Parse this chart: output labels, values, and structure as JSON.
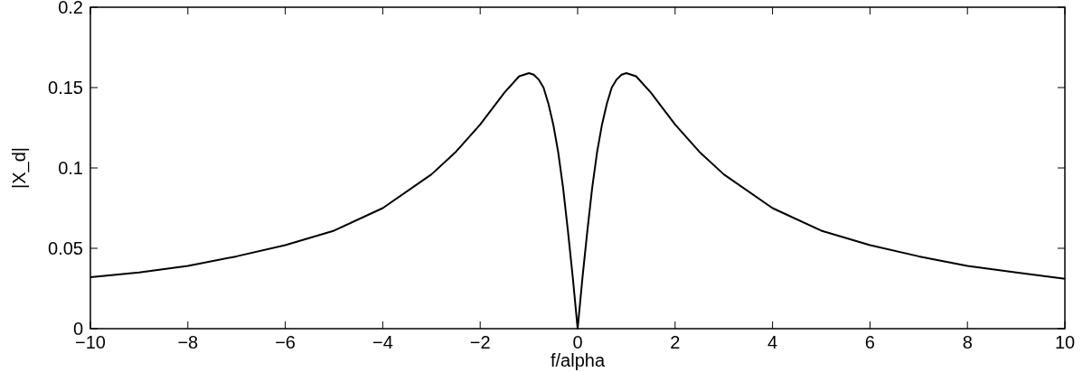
{
  "chart_data": {
    "type": "line",
    "xlabel": "f/alpha",
    "ylabel": "|X_d|",
    "x": [
      -10,
      -9,
      -8,
      -7,
      -6,
      -5,
      -4,
      -3,
      -2.5,
      -2,
      -1.5,
      -1.2,
      -1,
      -0.9,
      -0.8,
      -0.7,
      -0.6,
      -0.5,
      -0.4,
      -0.3,
      -0.2,
      -0.1,
      0,
      0.1,
      0.2,
      0.3,
      0.4,
      0.5,
      0.6,
      0.7,
      0.8,
      0.9,
      1,
      1.2,
      1.5,
      2,
      2.5,
      3,
      4,
      5,
      6,
      7,
      8,
      9,
      10
    ],
    "series": [
      {
        "color": "#000000",
        "values": [
          0.032,
          0.035,
          0.039,
          0.045,
          0.052,
          0.061,
          0.075,
          0.096,
          0.11,
          0.127,
          0.147,
          0.157,
          0.159,
          0.158,
          0.155,
          0.15,
          0.14,
          0.127,
          0.11,
          0.088,
          0.061,
          0.032,
          0,
          0.032,
          0.061,
          0.088,
          0.11,
          0.127,
          0.14,
          0.15,
          0.155,
          0.158,
          0.159,
          0.157,
          0.147,
          0.127,
          0.11,
          0.096,
          0.075,
          0.061,
          0.052,
          0.045,
          0.039,
          0.035,
          0.031
        ]
      }
    ],
    "xlim": [
      -10,
      10
    ],
    "xticks": [
      {
        "value": -10,
        "label": "−10"
      },
      {
        "value": -8,
        "label": "−8"
      },
      {
        "value": -6,
        "label": "−6"
      },
      {
        "value": -4,
        "label": "−4"
      },
      {
        "value": -2,
        "label": "−2"
      },
      0,
      2,
      4,
      6,
      8,
      10
    ],
    "ylim": [
      0,
      0.2
    ],
    "yticks": [
      0,
      0.05,
      0.1,
      0.15,
      0.2
    ],
    "grid": false,
    "line_style": "solid"
  }
}
